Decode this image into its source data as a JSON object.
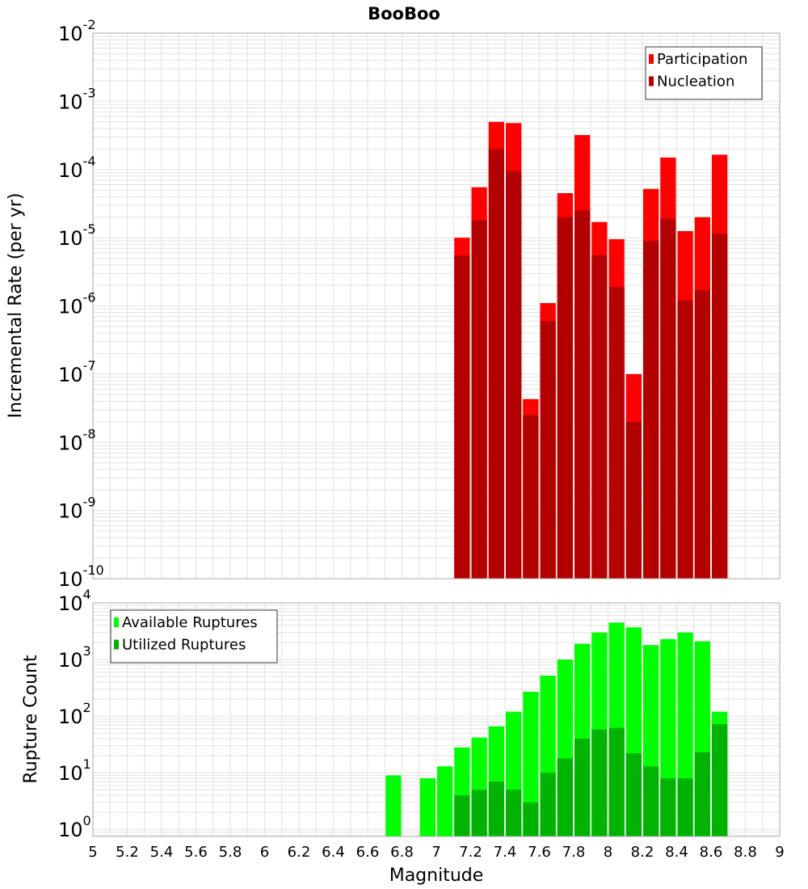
{
  "title": "BooBoo",
  "colors": {
    "participation": "#ff0000",
    "nucleation": "#b30000",
    "available": "#00ff00",
    "utilized": "#00b300",
    "grid": "#e2e2e2",
    "frame": "#aaaaaa"
  },
  "chart_data": [
    {
      "type": "bar",
      "scale": "log",
      "ylabel": "Incremental Rate (per yr)",
      "xlabel": "",
      "xlim": [
        5,
        9
      ],
      "ylim": [
        1e-10,
        0.01
      ],
      "ytick_labels": [
        {
          "base": "10",
          "exp": "-10"
        },
        {
          "base": "10",
          "exp": "-9"
        },
        {
          "base": "10",
          "exp": "-8"
        },
        {
          "base": "10",
          "exp": "-7"
        },
        {
          "base": "10",
          "exp": "-6"
        },
        {
          "base": "10",
          "exp": "-5"
        },
        {
          "base": "10",
          "exp": "-4"
        },
        {
          "base": "10",
          "exp": "-3"
        },
        {
          "base": "10",
          "exp": "-2"
        }
      ],
      "legend": {
        "position": "top-right",
        "entries": [
          "Participation",
          "Nucleation"
        ]
      },
      "x": [
        7.15,
        7.25,
        7.35,
        7.45,
        7.55,
        7.65,
        7.75,
        7.85,
        7.95,
        8.05,
        8.15,
        8.25,
        8.35,
        8.45,
        8.55,
        8.65
      ],
      "series": [
        {
          "name": "Participation",
          "values": [
            1e-05,
            5.5e-05,
            0.0005,
            0.00048,
            4.3e-08,
            1.1e-06,
            4.5e-05,
            0.00032,
            1.7e-05,
            9.5e-06,
            1e-07,
            5.2e-05,
            0.00015,
            1.25e-05,
            2e-05,
            0.000165
          ]
        },
        {
          "name": "Nucleation",
          "values": [
            5.5e-06,
            1.8e-05,
            0.0002,
            9.5e-05,
            2.5e-08,
            6e-07,
            2e-05,
            2.5e-05,
            5.5e-06,
            1.9e-06,
            2e-08,
            9e-06,
            1.9e-05,
            1.2e-06,
            1.7e-06,
            1.15e-05
          ]
        }
      ]
    },
    {
      "type": "bar",
      "scale": "log",
      "ylabel": "Rupture Count",
      "xlabel": "Magnitude",
      "xlim": [
        5,
        9
      ],
      "ylim": [
        0.75,
        10000
      ],
      "ytick_labels": [
        {
          "base": "10",
          "exp": "0"
        },
        {
          "base": "10",
          "exp": "1"
        },
        {
          "base": "10",
          "exp": "2"
        },
        {
          "base": "10",
          "exp": "3"
        },
        {
          "base": "10",
          "exp": "4"
        }
      ],
      "xtick_labels": [
        "5",
        "5.2",
        "5.4",
        "5.6",
        "5.8",
        "6",
        "6.2",
        "6.4",
        "6.6",
        "6.8",
        "7",
        "7.2",
        "7.4",
        "7.6",
        "7.8",
        "8",
        "8.2",
        "8.4",
        "8.6",
        "8.8",
        "9"
      ],
      "legend": {
        "position": "top-left",
        "entries": [
          "Available Ruptures",
          "Utilized Ruptures"
        ]
      },
      "x": [
        6.75,
        6.95,
        7.05,
        7.15,
        7.25,
        7.35,
        7.45,
        7.55,
        7.65,
        7.75,
        7.85,
        7.95,
        8.05,
        8.15,
        8.25,
        8.35,
        8.45,
        8.55,
        8.65
      ],
      "series": [
        {
          "name": "Available Ruptures",
          "values": [
            9,
            8,
            13,
            28,
            42,
            66,
            120,
            270,
            520,
            1000,
            1900,
            3000,
            4500,
            3700,
            1800,
            2300,
            3000,
            2100,
            120
          ]
        },
        {
          "name": "Utilized Ruptures",
          "values": [
            null,
            null,
            null,
            4,
            5,
            7,
            5,
            3,
            10,
            18,
            40,
            58,
            62,
            22,
            13,
            8,
            8,
            23,
            72
          ]
        }
      ]
    }
  ]
}
